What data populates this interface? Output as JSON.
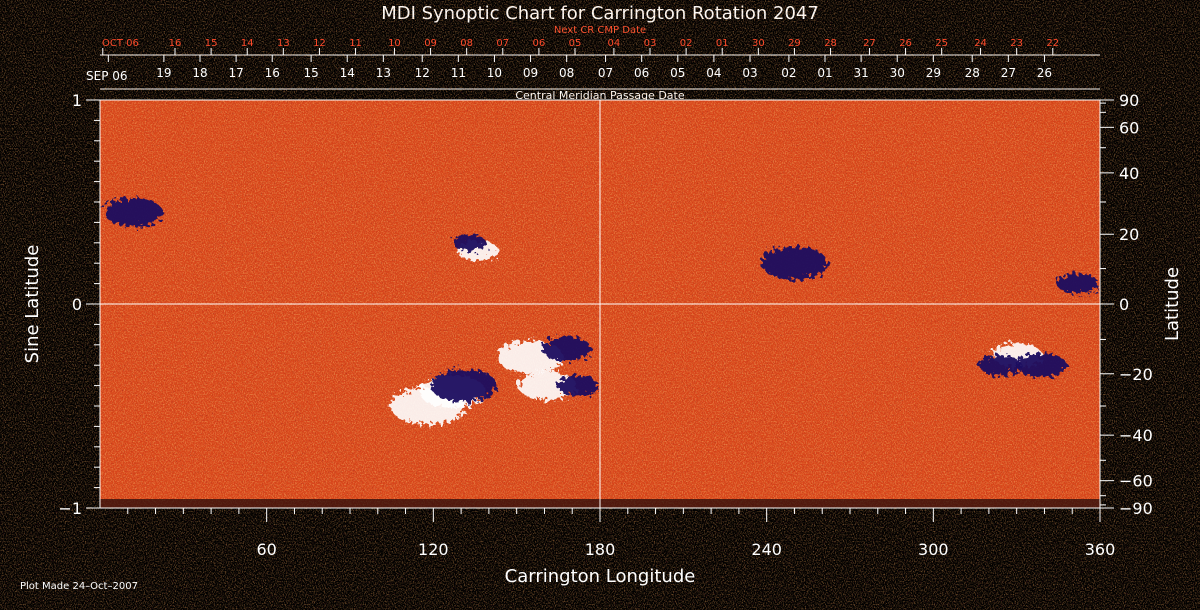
{
  "chart_data": {
    "type": "heatmap",
    "title": "MDI Synoptic Chart for Carrington Rotation 2047",
    "xlabel": "Carrington Longitude",
    "ylabel_left": "Sine Latitude",
    "ylabel_right": "Latitude",
    "top_axis1_label": "Next CR CMP Date",
    "top_axis2_label": "Central Meridian Passage Date",
    "xlim": [
      0,
      360
    ],
    "ylim": [
      -1,
      1
    ],
    "x_ticks": [
      60,
      120,
      180,
      240,
      300,
      360
    ],
    "y_ticks_left": [
      {
        "value": 1,
        "label": "1"
      },
      {
        "value": 0,
        "label": "0"
      },
      {
        "value": -1,
        "label": "−1"
      }
    ],
    "y_ticks_right": [
      {
        "value": 90,
        "label": "90"
      },
      {
        "value": 60,
        "label": "60"
      },
      {
        "value": 40,
        "label": "40"
      },
      {
        "value": 20,
        "label": "20"
      },
      {
        "value": 0,
        "label": "0"
      },
      {
        "value": -20,
        "label": "−20"
      },
      {
        "value": -40,
        "label": "−40"
      },
      {
        "value": -60,
        "label": "−60"
      },
      {
        "value": -90,
        "label": "−90"
      }
    ],
    "next_cr_dates": [
      {
        "lon": 1,
        "label": "OCT 06"
      },
      {
        "lon": 27,
        "label": "16"
      },
      {
        "lon": 40,
        "label": "15"
      },
      {
        "lon": 53,
        "label": "14"
      },
      {
        "lon": 66,
        "label": "13"
      },
      {
        "lon": 79,
        "label": "12"
      },
      {
        "lon": 92,
        "label": "11"
      },
      {
        "lon": 106,
        "label": "10"
      },
      {
        "lon": 119,
        "label": "09"
      },
      {
        "lon": 132,
        "label": "08"
      },
      {
        "lon": 145,
        "label": "07"
      },
      {
        "lon": 158,
        "label": "06"
      },
      {
        "lon": 171,
        "label": "05"
      },
      {
        "lon": 185,
        "label": "04"
      },
      {
        "lon": 198,
        "label": "03"
      },
      {
        "lon": 211,
        "label": "02"
      },
      {
        "lon": 224,
        "label": "01"
      },
      {
        "lon": 237,
        "label": "30"
      },
      {
        "lon": 250,
        "label": "29"
      },
      {
        "lon": 263,
        "label": "28"
      },
      {
        "lon": 277,
        "label": "27"
      },
      {
        "lon": 290,
        "label": "26"
      },
      {
        "lon": 303,
        "label": "25"
      },
      {
        "lon": 317,
        "label": "24"
      },
      {
        "lon": 330,
        "label": "23"
      },
      {
        "lon": 343,
        "label": "22"
      }
    ],
    "cmp_dates": [
      {
        "lon": 3,
        "label": "SEP 06"
      },
      {
        "lon": 23,
        "label": "19"
      },
      {
        "lon": 36,
        "label": "18"
      },
      {
        "lon": 49,
        "label": "17"
      },
      {
        "lon": 62,
        "label": "16"
      },
      {
        "lon": 76,
        "label": "15"
      },
      {
        "lon": 89,
        "label": "14"
      },
      {
        "lon": 102,
        "label": "13"
      },
      {
        "lon": 116,
        "label": "12"
      },
      {
        "lon": 129,
        "label": "11"
      },
      {
        "lon": 142,
        "label": "10"
      },
      {
        "lon": 155,
        "label": "09"
      },
      {
        "lon": 168,
        "label": "08"
      },
      {
        "lon": 182,
        "label": "07"
      },
      {
        "lon": 195,
        "label": "06"
      },
      {
        "lon": 208,
        "label": "05"
      },
      {
        "lon": 221,
        "label": "04"
      },
      {
        "lon": 234,
        "label": "03"
      },
      {
        "lon": 248,
        "label": "02"
      },
      {
        "lon": 261,
        "label": "01"
      },
      {
        "lon": 274,
        "label": "31"
      },
      {
        "lon": 287,
        "label": "30"
      },
      {
        "lon": 300,
        "label": "29"
      },
      {
        "lon": 314,
        "label": "28"
      },
      {
        "lon": 327,
        "label": "27"
      },
      {
        "lon": 340,
        "label": "26"
      }
    ],
    "active_regions": [
      {
        "lon": 118,
        "sinlat": -0.5,
        "r": 0.09,
        "polarity": "positive"
      },
      {
        "lon": 127,
        "sinlat": -0.43,
        "r": 0.08,
        "polarity": "positive"
      },
      {
        "lon": 131,
        "sinlat": -0.4,
        "r": 0.08,
        "polarity": "negative"
      },
      {
        "lon": 136,
        "sinlat": 0.26,
        "r": 0.05,
        "polarity": "positive"
      },
      {
        "lon": 133,
        "sinlat": 0.3,
        "r": 0.04,
        "polarity": "negative"
      },
      {
        "lon": 155,
        "sinlat": -0.26,
        "r": 0.08,
        "polarity": "positive"
      },
      {
        "lon": 161,
        "sinlat": -0.4,
        "r": 0.07,
        "polarity": "positive"
      },
      {
        "lon": 168,
        "sinlat": -0.22,
        "r": 0.06,
        "polarity": "negative"
      },
      {
        "lon": 172,
        "sinlat": -0.4,
        "r": 0.05,
        "polarity": "negative"
      },
      {
        "lon": 330,
        "sinlat": -0.25,
        "r": 0.06,
        "polarity": "positive"
      },
      {
        "lon": 324,
        "sinlat": -0.3,
        "r": 0.05,
        "polarity": "negative"
      },
      {
        "lon": 339,
        "sinlat": -0.3,
        "r": 0.06,
        "polarity": "negative"
      },
      {
        "lon": 12,
        "sinlat": 0.45,
        "r": 0.07,
        "polarity": "negative"
      },
      {
        "lon": 250,
        "sinlat": 0.2,
        "r": 0.08,
        "polarity": "negative"
      },
      {
        "lon": 352,
        "sinlat": 0.1,
        "r": 0.05,
        "polarity": "negative"
      }
    ],
    "colors": {
      "background": "#d8441a",
      "positive": "#ffffff",
      "negative": "#1a0a60",
      "grid": "#ffffff",
      "date_text": "#ff4a2a"
    }
  },
  "footer": {
    "plot_made": "Plot Made 24–Oct–2007"
  }
}
